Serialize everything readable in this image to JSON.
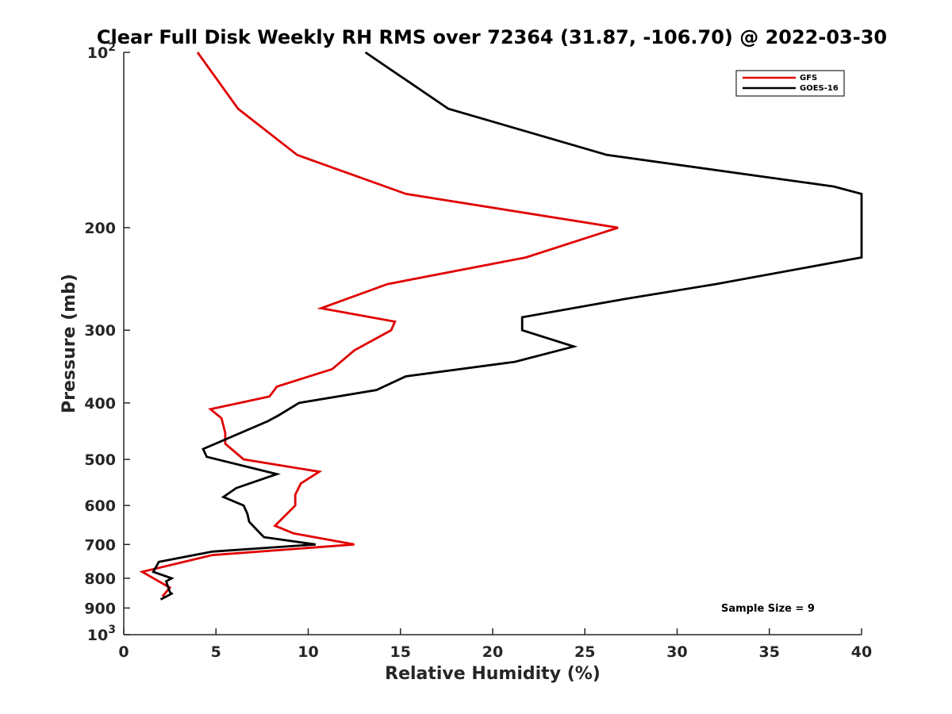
{
  "chart_data": {
    "type": "line",
    "title": "Clear Full Disk Weekly RH RMS over 72364 (31.87, -106.70) @ 2022-03-30",
    "xlabel": "Relative Humidity (%)",
    "ylabel": "Pressure (mb)",
    "xlim": [
      0,
      40
    ],
    "ylim": [
      100,
      1000
    ],
    "y_scale": "log",
    "y_reversed": true,
    "grid": false,
    "legend_position": "top-right",
    "x_ticks": [
      {
        "value": 0,
        "label": "0"
      },
      {
        "value": 5,
        "label": "5"
      },
      {
        "value": 10,
        "label": "10"
      },
      {
        "value": 15,
        "label": "15"
      },
      {
        "value": 20,
        "label": "20"
      },
      {
        "value": 25,
        "label": "25"
      },
      {
        "value": 30,
        "label": "30"
      },
      {
        "value": 35,
        "label": "35"
      },
      {
        "value": 40,
        "label": "40"
      }
    ],
    "y_ticks": [
      {
        "value": 100,
        "label": "10",
        "sup": "2"
      },
      {
        "value": 200,
        "label": "200",
        "sup": ""
      },
      {
        "value": 300,
        "label": "300",
        "sup": ""
      },
      {
        "value": 400,
        "label": "400",
        "sup": ""
      },
      {
        "value": 500,
        "label": "500",
        "sup": ""
      },
      {
        "value": 600,
        "label": "600",
        "sup": ""
      },
      {
        "value": 700,
        "label": "700",
        "sup": ""
      },
      {
        "value": 800,
        "label": "800",
        "sup": ""
      },
      {
        "value": 900,
        "label": "900",
        "sup": ""
      },
      {
        "value": 1000,
        "label": "10",
        "sup": "3"
      }
    ],
    "series": [
      {
        "name": "GFS",
        "color": "#e00000",
        "points": [
          [
            4.0,
            100
          ],
          [
            6.2,
            125
          ],
          [
            9.4,
            150
          ],
          [
            15.3,
            175
          ],
          [
            26.8,
            200
          ],
          [
            21.8,
            225
          ],
          [
            14.3,
            250
          ],
          [
            10.7,
            275
          ],
          [
            14.7,
            290
          ],
          [
            14.5,
            300
          ],
          [
            12.5,
            325
          ],
          [
            11.3,
            350
          ],
          [
            8.3,
            375
          ],
          [
            7.9,
            390
          ],
          [
            4.7,
            410
          ],
          [
            5.3,
            425
          ],
          [
            5.5,
            450
          ],
          [
            5.5,
            470
          ],
          [
            6.5,
            500
          ],
          [
            10.6,
            525
          ],
          [
            9.6,
            550
          ],
          [
            9.3,
            575
          ],
          [
            9.3,
            600
          ],
          [
            8.2,
            650
          ],
          [
            9.2,
            670
          ],
          [
            12.5,
            700
          ],
          [
            4.8,
            730
          ],
          [
            1.0,
            780
          ],
          [
            1.9,
            810
          ],
          [
            2.5,
            830
          ],
          [
            2.1,
            860
          ]
        ]
      },
      {
        "name": "GOES-16",
        "color": "#000000",
        "points": [
          [
            13.1,
            100
          ],
          [
            17.6,
            125
          ],
          [
            26.2,
            150
          ],
          [
            38.5,
            170
          ],
          [
            40.0,
            175
          ],
          [
            40.0,
            225
          ],
          [
            32.1,
            250
          ],
          [
            27.2,
            265
          ],
          [
            21.6,
            285
          ],
          [
            21.6,
            300
          ],
          [
            24.4,
            320
          ],
          [
            21.2,
            340
          ],
          [
            15.3,
            360
          ],
          [
            13.7,
            380
          ],
          [
            9.5,
            400
          ],
          [
            8.4,
            420
          ],
          [
            7.8,
            430
          ],
          [
            4.3,
            480
          ],
          [
            4.5,
            495
          ],
          [
            8.3,
            530
          ],
          [
            6.1,
            560
          ],
          [
            5.4,
            580
          ],
          [
            6.5,
            600
          ],
          [
            6.7,
            620
          ],
          [
            6.8,
            640
          ],
          [
            7.2,
            660
          ],
          [
            7.6,
            680
          ],
          [
            10.4,
            700
          ],
          [
            4.8,
            720
          ],
          [
            1.9,
            750
          ],
          [
            1.6,
            780
          ],
          [
            2.6,
            800
          ],
          [
            2.3,
            810
          ],
          [
            2.5,
            845
          ],
          [
            2.6,
            850
          ],
          [
            2.0,
            870
          ]
        ]
      }
    ],
    "annotation": "Sample Size = 9"
  }
}
